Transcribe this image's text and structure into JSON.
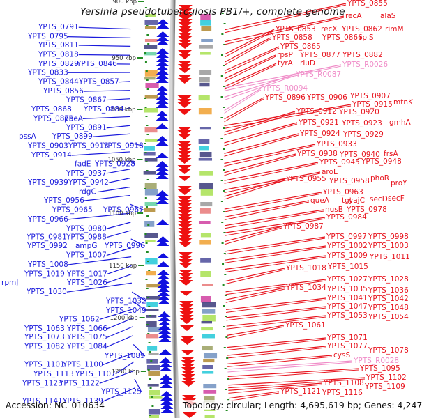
{
  "title": "Yersinia pseudotuberculosis PB1/+, complete genome",
  "footer": {
    "accession": "Accession: NC_010634",
    "summary": "Topology: circular; Length: 4,695,619 bp; Genes: 4,247"
  },
  "colors": {
    "forward_label": "#1a1adc",
    "reverse_label": "#e8141e",
    "rna_label": "#f08cc8",
    "backbone": "#888888",
    "tick": "#228b22"
  },
  "ticks": [
    "900 kbp",
    "950 kbp",
    "1000 kbp",
    "1050 kbp",
    "1100 kbp",
    "1150 kbp",
    "1200 kbp",
    "1250 kbp"
  ],
  "left_labels": [
    [
      "YPTS_0791"
    ],
    [
      "YPTS_0795"
    ],
    [
      "YPTS_0811"
    ],
    [
      "YPTS_0818"
    ],
    [
      "YPTS_0829",
      "YPTS_0846"
    ],
    [
      "YPTS_0833"
    ],
    [
      "YPTS_0844",
      "YPTS_0857"
    ],
    [
      "YPTS_0856"
    ],
    [
      "YPTS_0867"
    ],
    [
      "YPTS_0868",
      "YPTS_0884"
    ],
    [
      "YPTS_0879",
      "pheA"
    ],
    [
      "YPTS_0891"
    ],
    [
      "pssA",
      "YPTS_0899"
    ],
    [
      "YPTS_0903",
      "YPTS_0913",
      "YPTS_0918"
    ],
    [
      "YPTS_0914"
    ],
    [
      "fadE",
      "YPTS_0928"
    ],
    [
      "YPTS_0937"
    ],
    [
      "YPTS_0939",
      "YPTS_0942"
    ],
    [
      "rdgC"
    ],
    [
      "YPTS_0956"
    ],
    [
      "YPTS_0965",
      "YPTS_0967"
    ],
    [
      "YPTS_0966"
    ],
    [
      "YPTS_0980"
    ],
    [
      "YPTS_0981",
      "YPTS_0988"
    ],
    [
      "YPTS_0992",
      "ampG",
      "YPTS_0996"
    ],
    [
      "YPTS_1007"
    ],
    [
      "YPTS_1008"
    ],
    [
      "YPTS_1019",
      "YPTS_1017"
    ],
    [
      "rpmJ",
      "YPTS_1026"
    ],
    [
      "YPTS_1030"
    ],
    [
      "YPTS_1032"
    ],
    [
      "YPTS_1049"
    ],
    [
      "YPTS_1062"
    ],
    [
      "YPTS_1063",
      "YPTS_1066"
    ],
    [
      "YPTS_1073",
      "YPTS_1075"
    ],
    [
      "YPTS_1082",
      "YPTS_1084"
    ],
    [
      "YPTS_1089"
    ],
    [
      "YPTS_1101",
      "YPTS_1100"
    ],
    [
      "YPTS_1113",
      "YPTS_1107"
    ],
    [
      "YPTS_1123",
      "YPTS_1122"
    ],
    [
      "YPTS_1125"
    ],
    [
      "YPTS_1141",
      "YPTS_1139"
    ]
  ],
  "right_labels": [
    {
      "items": [
        "YPTS_0855"
      ],
      "type": "gene"
    },
    {
      "items": [
        "recA",
        "alaS"
      ],
      "type": "gene"
    },
    {
      "items": [
        "YPTS_0853",
        "recX",
        "YPTS_0862",
        "rimM"
      ],
      "type": "gene"
    },
    {
      "items": [
        "YPTS_0858",
        "YPTS_0866",
        "rplS"
      ],
      "type": "gene"
    },
    {
      "items": [
        "YPTS_0865"
      ],
      "type": "gene"
    },
    {
      "items": [
        "rpsP",
        "YPTS_0877",
        "YPTS_0882"
      ],
      "type": "gene"
    },
    {
      "items": [
        "tyrA",
        "rluD"
      ],
      "type": "gene"
    },
    {
      "items": [
        "YPTS_R0026"
      ],
      "type": "rna"
    },
    {
      "items": [
        "YPTS_R0087"
      ],
      "type": "rna"
    },
    {
      "items": [
        "YPTS_R0094"
      ],
      "type": "rna"
    },
    {
      "items": [
        "YPTS_0896",
        "YPTS_0906",
        "YPTS_0907"
      ],
      "type": "gene"
    },
    {
      "items": [
        "YPTS_0915",
        "mtnK"
      ],
      "type": "gene"
    },
    {
      "items": [
        "YPTS_0912",
        "YPTS_0920"
      ],
      "type": "gene"
    },
    {
      "items": [
        "YPTS_0921",
        "YPTS_0923",
        "gmhA"
      ],
      "type": "gene"
    },
    {
      "items": [
        "YPTS_0924",
        "YPTS_0929"
      ],
      "type": "gene"
    },
    {
      "items": [
        "YPTS_0933"
      ],
      "type": "gene"
    },
    {
      "items": [
        "YPTS_0938",
        "YPTS_0940",
        "frsA"
      ],
      "type": "gene"
    },
    {
      "items": [
        "YPTS_0945",
        "YPTS_0948"
      ],
      "type": "gene"
    },
    {
      "items": [
        "aroL"
      ],
      "type": "gene"
    },
    {
      "items": [
        "YPTS_0955",
        "YPTS_0958",
        "phoR",
        "proY"
      ],
      "type": "gene"
    },
    {
      "items": [
        "YPTS_0963"
      ],
      "type": "gene"
    },
    {
      "items": [
        "queA",
        "tgt",
        "yajC",
        "secD",
        "secF"
      ],
      "type": "gene"
    },
    {
      "items": [
        "nusB",
        "YPTS_0978"
      ],
      "type": "gene"
    },
    {
      "items": [
        "YPTS_0984"
      ],
      "type": "gene"
    },
    {
      "items": [
        "YPTS_0987"
      ],
      "type": "gene"
    },
    {
      "items": [
        "YPTS_0997",
        "YPTS_0998"
      ],
      "type": "gene"
    },
    {
      "items": [
        "YPTS_1002",
        "YPTS_1003"
      ],
      "type": "gene"
    },
    {
      "items": [
        "YPTS_1009",
        "YPTS_1011"
      ],
      "type": "gene"
    },
    {
      "items": [
        "YPTS_1018",
        "YPTS_1015"
      ],
      "type": "gene"
    },
    {
      "items": [
        "YPTS_1027",
        "YPTS_1028"
      ],
      "type": "gene"
    },
    {
      "items": [
        "YPTS_1034",
        "YPTS_1035",
        "YPTS_1036"
      ],
      "type": "gene"
    },
    {
      "items": [
        "YPTS_1041",
        "YPTS_1042"
      ],
      "type": "gene"
    },
    {
      "items": [
        "YPTS_1047",
        "YPTS_1048"
      ],
      "type": "gene"
    },
    {
      "items": [
        "YPTS_1053",
        "YPTS_1054"
      ],
      "type": "gene"
    },
    {
      "items": [
        "YPTS_1061"
      ],
      "type": "gene"
    },
    {
      "items": [
        "YPTS_1071"
      ],
      "type": "gene"
    },
    {
      "items": [
        "YPTS_1077",
        "YPTS_1078"
      ],
      "type": "gene"
    },
    {
      "items": [
        "cysS"
      ],
      "type": "gene"
    },
    {
      "items": [
        "YPTS_R0028"
      ],
      "type": "rna"
    },
    {
      "items": [
        "YPTS_1095"
      ],
      "type": "gene"
    },
    {
      "items": [
        "YPTS_1102"
      ],
      "type": "gene"
    },
    {
      "items": [
        "YPTS_1108",
        "YPTS_1109"
      ],
      "type": "gene"
    },
    {
      "items": [
        "YPTS_1121",
        "YPTS_1116"
      ],
      "type": "gene"
    }
  ]
}
